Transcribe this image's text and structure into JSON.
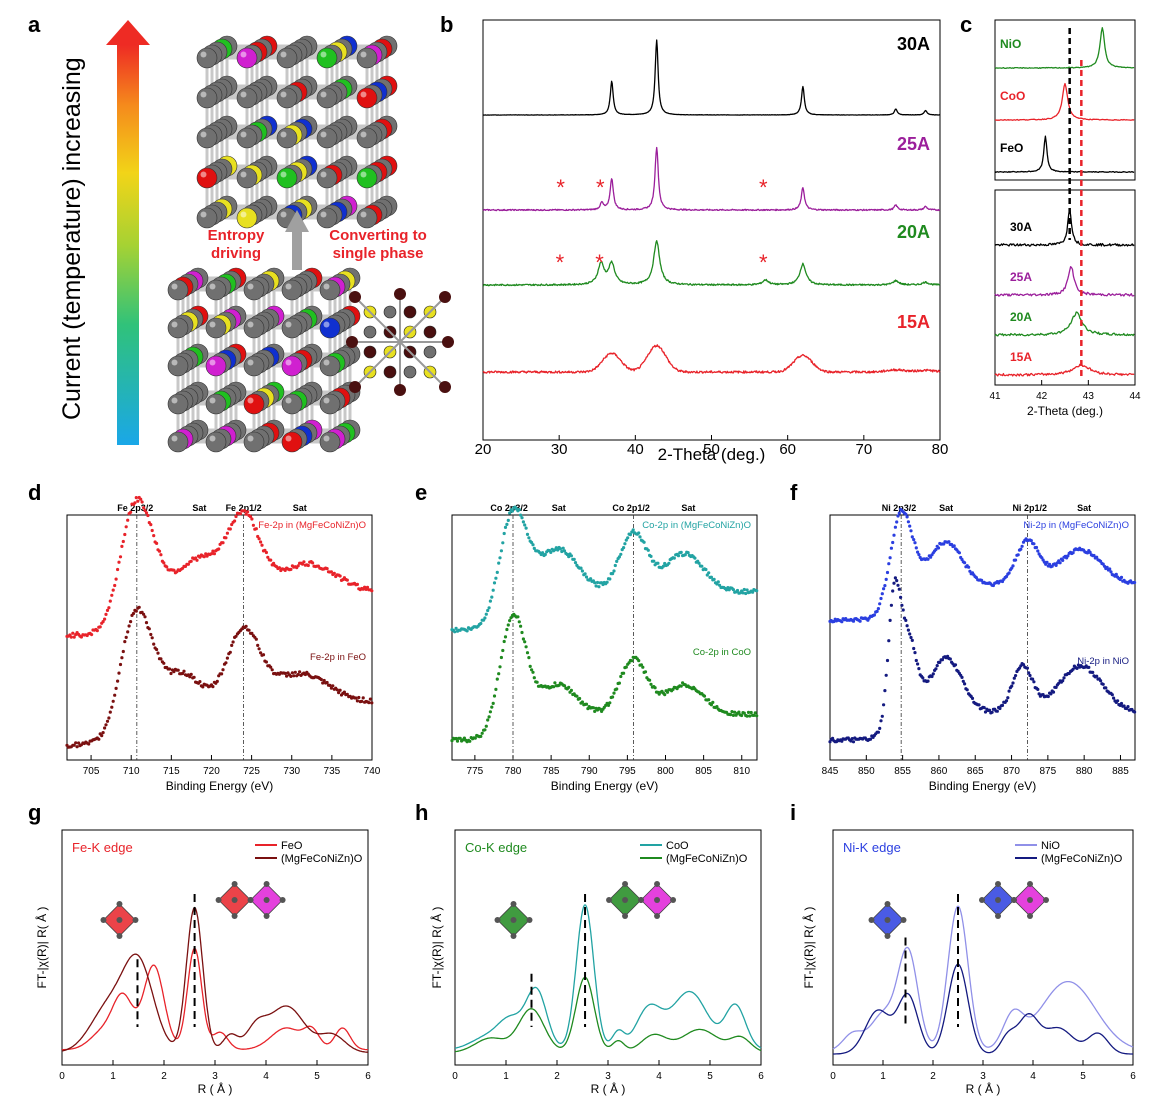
{
  "panels": {
    "a": "a",
    "b": "b",
    "c": "c",
    "d": "d",
    "e": "e",
    "f": "f",
    "g": "g",
    "h": "h",
    "i": "i"
  },
  "panel_a": {
    "arrow_label": "Current (temperature) increasing",
    "label_entropy_1": "Entropy",
    "label_entropy_2": "driving",
    "label_convert_1": "Converting to",
    "label_convert_2": "single phase",
    "colors": {
      "gray": "#707070",
      "red": "#e01010",
      "blue": "#1030d0",
      "green": "#20c020",
      "magenta": "#d020d0",
      "yellow": "#e8e020",
      "brown": "#4a1010"
    }
  },
  "chart_data": [
    {
      "id": "b",
      "type": "line",
      "xlabel": "2-Theta (deg.)",
      "xlim": [
        20,
        80
      ],
      "xticks": [
        20,
        30,
        40,
        50,
        60,
        70,
        80
      ],
      "series": [
        {
          "name": "30A",
          "color": "#000000",
          "peaks": [
            [
              36.9,
              0.45
            ],
            [
              42.8,
              1.0
            ],
            [
              62.0,
              0.38
            ],
            [
              74.2,
              0.08
            ],
            [
              78.1,
              0.06
            ]
          ],
          "noise": 0.2,
          "broad": 0.12,
          "marks": []
        },
        {
          "name": "25A",
          "color": "#9b1f9b",
          "peaks": [
            [
              35.6,
              0.1
            ],
            [
              36.9,
              0.45
            ],
            [
              42.8,
              0.9
            ],
            [
              62.0,
              0.32
            ],
            [
              74.2,
              0.07
            ],
            [
              78.1,
              0.05
            ]
          ],
          "noise": 0.9,
          "broad": 0.15,
          "marks": [
            30.2,
            35.4,
            56.8
          ]
        },
        {
          "name": "20A",
          "color": "#1f8a1f",
          "peaks": [
            [
              35.5,
              0.3
            ],
            [
              36.9,
              0.3
            ],
            [
              42.8,
              0.62
            ],
            [
              57.1,
              0.07
            ],
            [
              62.0,
              0.3
            ],
            [
              74.2,
              0.06
            ],
            [
              78.1,
              0.04
            ]
          ],
          "noise": 1.1,
          "broad": 0.4,
          "marks": [
            30.1,
            35.3,
            56.8
          ]
        },
        {
          "name": "15A",
          "color": "#e8232a",
          "peaks": [
            [
              36.9,
              0.34
            ],
            [
              42.8,
              0.48
            ],
            [
              62.0,
              0.3
            ],
            [
              74.2,
              0.04
            ],
            [
              78.1,
              0.03
            ]
          ],
          "noise": 2.0,
          "broad": 1.4,
          "marks": []
        }
      ]
    },
    {
      "id": "c",
      "type": "line",
      "xlabel": "2-Theta (deg.)",
      "xlim": [
        41,
        44
      ],
      "xticks": [
        41,
        42,
        43,
        44
      ],
      "ref_lines": [
        42.6,
        42.85
      ],
      "series": [
        {
          "name": "NiO",
          "color": "#1f8a1f",
          "center": 43.3,
          "height": 1.0,
          "width": 0.06,
          "panel": "top"
        },
        {
          "name": "CoO",
          "color": "#e8232a",
          "center": 42.5,
          "height": 0.9,
          "width": 0.07,
          "panel": "top"
        },
        {
          "name": "FeO",
          "color": "#000000",
          "center": 42.08,
          "height": 0.9,
          "width": 0.04,
          "panel": "top"
        },
        {
          "name": "30A",
          "color": "#000000",
          "center": 42.6,
          "height": 0.9,
          "width": 0.05,
          "panel": "bottom"
        },
        {
          "name": "25A",
          "color": "#9b1f9b",
          "center": 42.63,
          "height": 0.7,
          "width": 0.08,
          "panel": "bottom"
        },
        {
          "name": "20A",
          "color": "#1f8a1f",
          "center": 42.75,
          "height": 0.55,
          "width": 0.14,
          "panel": "bottom"
        },
        {
          "name": "15A",
          "color": "#e8232a",
          "center": 42.85,
          "height": 0.25,
          "width": 0.22,
          "panel": "bottom"
        }
      ]
    },
    {
      "id": "d",
      "type": "scatter",
      "xlabel": "Binding Energy (eV)",
      "xlim": [
        702,
        740
      ],
      "xticks": [
        705,
        710,
        715,
        720,
        725,
        730,
        735,
        740
      ],
      "top_labels": [
        "Fe 2p3/2",
        "Sat",
        "Fe 2p1/2",
        "Sat"
      ],
      "top_label_x": [
        710.5,
        718.5,
        724,
        731
      ],
      "ref_lines": [
        710.7,
        724.0
      ],
      "series": [
        {
          "name": "Fe-2p in (MgFeCoNiZn)O",
          "color": "#e8232a",
          "peaks": [
            [
              710.7,
              1.0,
              2.0
            ],
            [
              718.5,
              0.35,
              2.5
            ],
            [
              724.0,
              0.8,
              2.0
            ],
            [
              732,
              0.3,
              3.5
            ]
          ],
          "edge": 708.5,
          "step": 0.45
        },
        {
          "name": "Fe-2p in FeO",
          "color": "#7a1010",
          "peaks": [
            [
              710.7,
              1.0,
              2.0
            ],
            [
              716.5,
              0.3,
              2.0
            ],
            [
              724.0,
              0.75,
              2.0
            ],
            [
              731,
              0.3,
              3.5
            ]
          ],
          "edge": 708.5,
          "step": 0.45
        }
      ]
    },
    {
      "id": "e",
      "type": "scatter",
      "xlabel": "Binding Energy (eV)",
      "xlim": [
        772,
        812
      ],
      "xticks": [
        775,
        780,
        785,
        790,
        795,
        800,
        805,
        810
      ],
      "top_labels": [
        "Co 2p3/2",
        "Sat",
        "Co 2p1/2",
        "Sat"
      ],
      "top_label_x": [
        779.5,
        786,
        795.5,
        803
      ],
      "ref_lines": [
        780.0,
        795.8
      ],
      "series": [
        {
          "name": "Co-2p in (MgFeCoNiZn)O",
          "color": "#22a3a3",
          "peaks": [
            [
              780.0,
              1.0,
              1.8
            ],
            [
              786,
              0.5,
              2.5
            ],
            [
              795.8,
              0.7,
              1.8
            ],
            [
              802.5,
              0.45,
              2.5
            ]
          ],
          "edge": 778.3,
          "step": 0.45
        },
        {
          "name": "Co-2p in CoO",
          "color": "#1f8a1f",
          "peaks": [
            [
              780.0,
              1.2,
              1.7
            ],
            [
              786,
              0.35,
              2.3
            ],
            [
              795.8,
              0.65,
              1.8
            ],
            [
              802.5,
              0.35,
              2.5
            ]
          ],
          "edge": 778.3,
          "step": 0.3
        }
      ]
    },
    {
      "id": "f",
      "type": "scatter",
      "xlabel": "Binding Energy (eV)",
      "xlim": [
        845,
        887
      ],
      "xticks": [
        845,
        850,
        855,
        860,
        865,
        870,
        875,
        880,
        885
      ],
      "top_labels": [
        "Ni 2p3/2",
        "Sat",
        "Ni 2p1/2",
        "Sat"
      ],
      "top_label_x": [
        854.5,
        861,
        872.5,
        880
      ],
      "ref_lines": [
        854.8,
        872.2
      ],
      "series": [
        {
          "name": "Ni-2p in (MgFeCoNiZn)O",
          "color": "#2b3fe0",
          "peaks": [
            [
              854.8,
              1.0,
              1.5
            ],
            [
              861,
              0.55,
              2.2
            ],
            [
              872.2,
              0.55,
              1.6
            ],
            [
              879.5,
              0.45,
              3.0
            ]
          ],
          "edge": 853.3,
          "step": 0.45
        },
        {
          "name": "Ni-2p in NiO",
          "color": "#141a80",
          "peaks": [
            [
              853.8,
              1.4,
              0.8
            ],
            [
              855.6,
              1.0,
              1.2
            ],
            [
              861,
              0.7,
              2.2
            ],
            [
              871.5,
              0.6,
              1.4
            ],
            [
              879.5,
              0.6,
              3.0
            ]
          ],
          "edge": 852.8,
          "step": 0.35
        }
      ]
    },
    {
      "id": "g",
      "type": "line",
      "xlabel": "R ( Å )",
      "ylabel": "FT-|χ(R)| R( Å )",
      "xlim": [
        0,
        6
      ],
      "xticks": [
        0,
        1,
        2,
        3,
        4,
        5,
        6
      ],
      "edge_label": "Fe-K edge",
      "edge_color": "#e8232a",
      "dash_lines": [
        [
          1.48,
          0.55
        ],
        [
          2.6,
          1.0
        ]
      ],
      "series": [
        {
          "name": "FeO",
          "color": "#e8232a",
          "peaks": [
            [
              0.8,
              0.12,
              0.25
            ],
            [
              1.2,
              0.35,
              0.2
            ],
            [
              1.8,
              0.58,
              0.2
            ],
            [
              2.6,
              0.7,
              0.14
            ],
            [
              3.1,
              0.12,
              0.15
            ],
            [
              4.4,
              0.15,
              0.3
            ],
            [
              4.9,
              0.12,
              0.15
            ],
            [
              5.5,
              0.15,
              0.15
            ]
          ],
          "base": 0.05
        },
        {
          "name": "(MgFeCoNiZn)O",
          "color": "#7a1010",
          "peaks": [
            [
              0.9,
              0.3,
              0.35
            ],
            [
              1.5,
              0.6,
              0.3
            ],
            [
              2.6,
              1.0,
              0.16
            ],
            [
              3.3,
              0.12,
              0.15
            ],
            [
              3.8,
              0.15,
              0.2
            ],
            [
              4.4,
              0.32,
              0.35
            ],
            [
              5.3,
              0.12,
              0.25
            ]
          ],
          "base": 0.03
        }
      ]
    },
    {
      "id": "h",
      "type": "line",
      "xlabel": "R ( Å )",
      "ylabel": "FT-|χ(R)| R( Å )",
      "xlim": [
        0,
        6
      ],
      "xticks": [
        0,
        1,
        2,
        3,
        4,
        5,
        6
      ],
      "edge_label": "Co-K edge",
      "edge_color": "#1f8a1f",
      "dash_lines": [
        [
          1.5,
          0.45
        ],
        [
          2.55,
          1.0
        ]
      ],
      "series": [
        {
          "name": "CoO",
          "color": "#22a3a3",
          "peaks": [
            [
              0.6,
              0.08,
              0.3
            ],
            [
              1.1,
              0.2,
              0.25
            ],
            [
              1.6,
              0.4,
              0.2
            ],
            [
              2.55,
              1.0,
              0.17
            ],
            [
              3.2,
              0.12,
              0.12
            ],
            [
              3.8,
              0.28,
              0.25
            ],
            [
              4.6,
              0.4,
              0.35
            ],
            [
              5.5,
              0.3,
              0.2
            ]
          ],
          "base": 0.05
        },
        {
          "name": "(MgFeCoNiZn)O",
          "color": "#1f8a1f",
          "peaks": [
            [
              0.7,
              0.1,
              0.3
            ],
            [
              1.5,
              0.3,
              0.25
            ],
            [
              2.55,
              0.52,
              0.18
            ],
            [
              3.2,
              0.08,
              0.12
            ],
            [
              3.9,
              0.12,
              0.25
            ],
            [
              4.8,
              0.16,
              0.35
            ],
            [
              5.6,
              0.1,
              0.2
            ]
          ],
          "base": 0.03
        }
      ]
    },
    {
      "id": "i",
      "type": "line",
      "xlabel": "R ( Å )",
      "ylabel": "FT-|χ(R)| R( Å )",
      "xlim": [
        0,
        6
      ],
      "xticks": [
        0,
        1,
        2,
        3,
        4,
        5,
        6
      ],
      "edge_label": "Ni-K edge",
      "edge_color": "#2b3fe0",
      "dash_lines": [
        [
          1.45,
          0.7
        ],
        [
          2.5,
          1.0
        ]
      ],
      "series": [
        {
          "name": "NiO",
          "color": "#9090e8",
          "peaks": [
            [
              0.4,
              0.12,
              0.2
            ],
            [
              1.0,
              0.25,
              0.25
            ],
            [
              1.5,
              0.68,
              0.2
            ],
            [
              2.5,
              1.0,
              0.2
            ],
            [
              3.6,
              0.22,
              0.2
            ],
            [
              4.7,
              0.48,
              0.55
            ]
          ],
          "base": 0.04
        },
        {
          "name": "(MgFeCoNiZn)O",
          "color": "#141a80",
          "peaks": [
            [
              0.9,
              0.3,
              0.25
            ],
            [
              1.5,
              0.4,
              0.2
            ],
            [
              2.5,
              0.62,
              0.2
            ],
            [
              3.5,
              0.12,
              0.15
            ],
            [
              3.9,
              0.25,
              0.2
            ],
            [
              4.5,
              0.18,
              0.3
            ],
            [
              5.3,
              0.14,
              0.2
            ]
          ],
          "base": 0.02
        }
      ]
    }
  ]
}
